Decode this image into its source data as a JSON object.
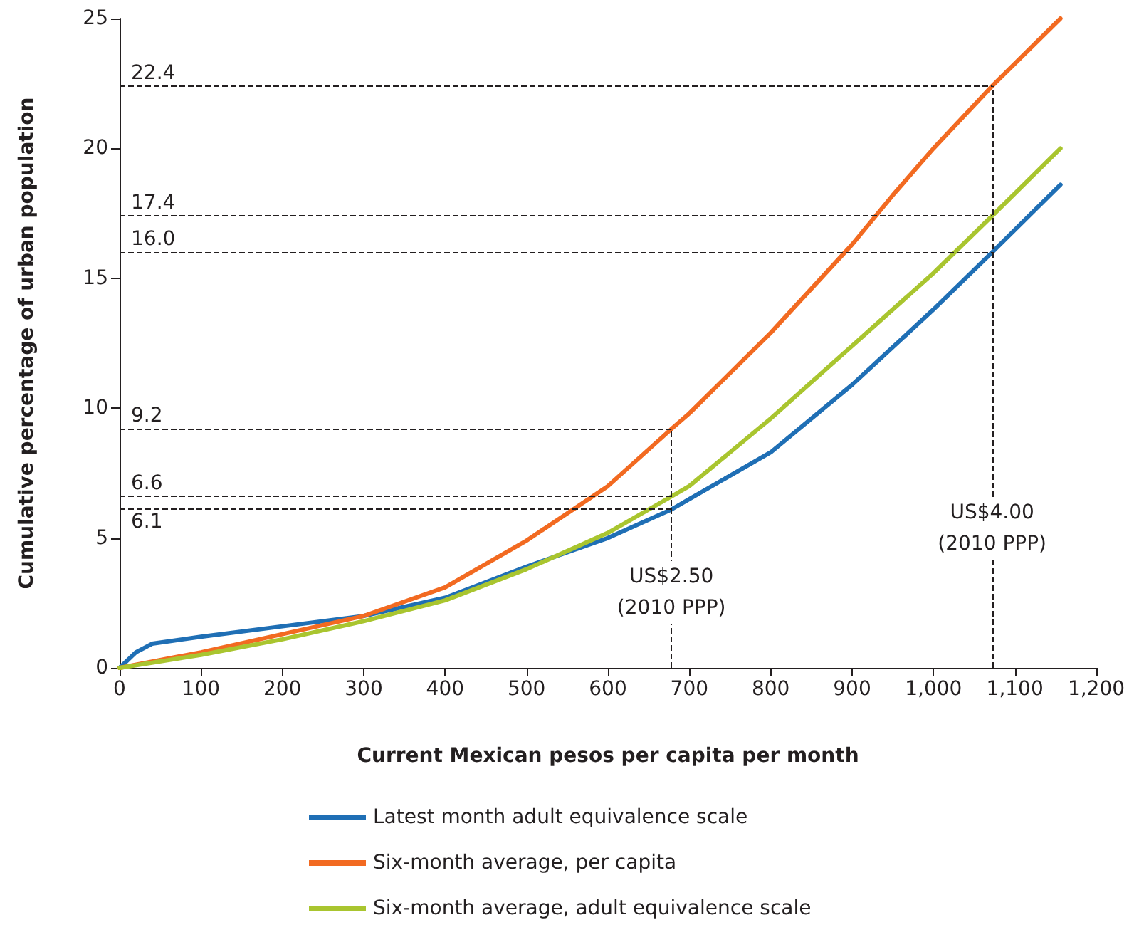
{
  "chart_data": {
    "type": "line",
    "xlabel": "Current Mexican pesos per capita per month",
    "ylabel": "Cumulative percentage of urban population",
    "xlim": [
      0,
      1200
    ],
    "xticks": [
      0,
      100,
      200,
      300,
      400,
      500,
      600,
      700,
      800,
      900,
      {
        "value": 1000,
        "label": "1,000"
      },
      {
        "value": 1100,
        "label": "1,100"
      },
      {
        "value": 1200,
        "label": "1,200"
      }
    ],
    "ylim": [
      0,
      25
    ],
    "yticks": [
      0,
      5,
      10,
      15,
      20,
      25
    ],
    "grid": false,
    "legend": "bottom",
    "marker": "none",
    "line_style": "solid",
    "series": [
      {
        "name": "Latest month adult equivalence scale",
        "color": "#1f6fb5",
        "x": [
          0,
          20,
          40,
          100,
          200,
          300,
          400,
          500,
          600,
          678,
          700,
          800,
          900,
          1000,
          1072,
          1156
        ],
        "values": [
          0,
          0.6,
          0.93,
          1.2,
          1.6,
          2.0,
          2.7,
          3.9,
          5.0,
          6.1,
          6.5,
          8.3,
          10.9,
          13.8,
          16.0,
          18.6
        ]
      },
      {
        "name": "Six-month average, per capita",
        "color": "#f26a21",
        "x": [
          0,
          100,
          200,
          300,
          400,
          500,
          600,
          678,
          700,
          800,
          900,
          950,
          1000,
          1072,
          1156
        ],
        "values": [
          0,
          0.6,
          1.3,
          2.0,
          3.1,
          4.9,
          7.0,
          9.2,
          9.8,
          12.9,
          16.3,
          18.2,
          20.0,
          22.4,
          25.0
        ]
      },
      {
        "name": "Six-month average, adult equivalence scale",
        "color": "#a9c52f",
        "x": [
          0,
          100,
          200,
          300,
          400,
          500,
          600,
          678,
          700,
          800,
          900,
          1000,
          1072,
          1156
        ],
        "values": [
          0,
          0.5,
          1.1,
          1.8,
          2.6,
          3.8,
          5.2,
          6.6,
          7.0,
          9.6,
          12.4,
          15.2,
          17.4,
          20.0
        ]
      }
    ],
    "ref_lines": [
      {
        "axis": "y",
        "value": 22.4,
        "label": "22.4",
        "color": "#231f20",
        "line_style": "dashed"
      },
      {
        "axis": "y",
        "value": 17.4,
        "label": "17.4",
        "color": "#231f20",
        "line_style": "dashed"
      },
      {
        "axis": "y",
        "value": 16.0,
        "label": "16.0",
        "color": "#231f20",
        "line_style": "dashed"
      },
      {
        "axis": "y",
        "value": 9.2,
        "label": "9.2",
        "color": "#231f20",
        "line_style": "dashed"
      },
      {
        "axis": "y",
        "value": 6.6,
        "label": "6.6",
        "color": "#231f20",
        "line_style": "dashed"
      },
      {
        "axis": "y",
        "value": 6.1,
        "label": "6.1",
        "color": "#231f20",
        "line_style": "dashed"
      },
      {
        "axis": "x",
        "value": 678,
        "label": "US$2.50\n(2010 PPP)",
        "color": "#231f20",
        "line_style": "dashed"
      },
      {
        "axis": "x",
        "value": 1072,
        "label": "US$4.00\n(2010 PPP)",
        "color": "#231f20",
        "line_style": "dashed"
      }
    ]
  }
}
